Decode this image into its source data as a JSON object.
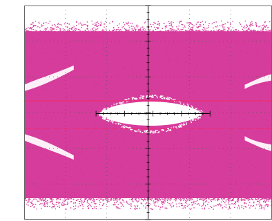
{
  "chart_data": {
    "type": "eye-diagram",
    "title": "",
    "xlabel": "",
    "ylabel": "",
    "grid": true,
    "graticule": {
      "divisions_x": 6,
      "divisions_y": 6,
      "center_axes": true,
      "style": "dotted"
    },
    "colors": {
      "trace": "#d63c9c",
      "trace_dark": "#c22f88",
      "marker_line": "#e8307a",
      "axis": "#000000",
      "grid_dot": "#555555",
      "background": "#ffffff",
      "border": "#666666"
    },
    "markers": [
      {
        "name": "",
        "style": "solid",
        "level_fraction": 0.445
      },
      {
        "name": "",
        "style": "dashed",
        "level_fraction": 0.575
      }
    ],
    "eye": {
      "upper_rail_fraction": [
        0.12,
        0.32
      ],
      "lower_rail_fraction": [
        0.7,
        0.9
      ],
      "center_opening_fraction": [
        0.43,
        0.58
      ],
      "opening_width_fraction": [
        0.3,
        0.72
      ]
    }
  }
}
